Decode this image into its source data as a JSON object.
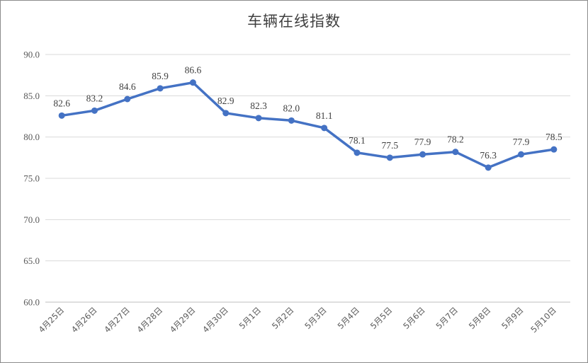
{
  "chart_data": {
    "type": "line",
    "title": "车辆在线指数",
    "xlabel": "",
    "ylabel": "",
    "ylim": [
      60,
      90
    ],
    "yticks": [
      "60.0",
      "65.0",
      "70.0",
      "75.0",
      "80.0",
      "85.0",
      "90.0"
    ],
    "grid": true,
    "legend": "none",
    "line_color": "#4472C4",
    "categories": [
      "4月25日",
      "4月26日",
      "4月27日",
      "4月28日",
      "4月29日",
      "4月30日",
      "5月1日",
      "5月2日",
      "5月3日",
      "5月4日",
      "5月5日",
      "5月6日",
      "5月7日",
      "5月8日",
      "5月9日",
      "5月10日"
    ],
    "values": [
      82.6,
      83.2,
      84.6,
      85.9,
      86.6,
      82.9,
      82.3,
      82.0,
      81.1,
      78.1,
      77.5,
      77.9,
      78.2,
      76.3,
      77.9,
      78.5
    ],
    "value_labels": [
      "82.6",
      "83.2",
      "84.6",
      "85.9",
      "86.6",
      "82.9",
      "82.3",
      "82.0",
      "81.1",
      "78.1",
      "77.5",
      "77.9",
      "78.2",
      "76.3",
      "77.9",
      "78.5"
    ]
  }
}
